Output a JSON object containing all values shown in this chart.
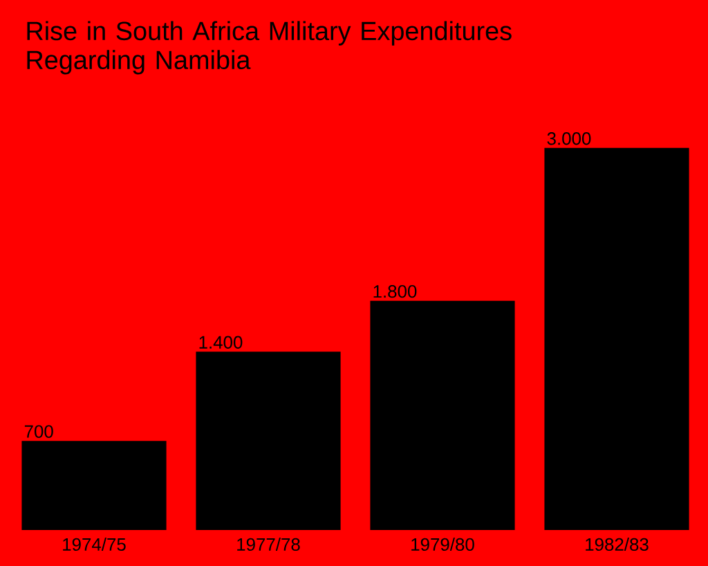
{
  "chart_data": {
    "type": "bar",
    "title": "Rise in South Africa Military Expenditures Regarding Namibia",
    "categories": [
      "1974/75",
      "1977/78",
      "1979/80",
      "1982/83"
    ],
    "values": [
      700,
      1400,
      1800,
      3000
    ],
    "value_labels": [
      "700",
      "1.400",
      "1.800",
      "3.000"
    ],
    "color": "#000000"
  }
}
